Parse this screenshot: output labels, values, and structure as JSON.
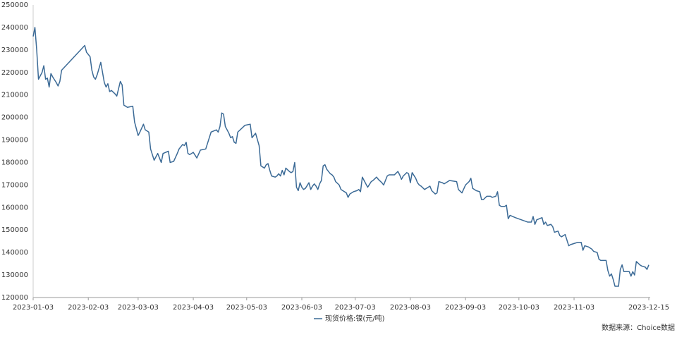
{
  "chart_data": {
    "type": "line",
    "legend_position": "bottom",
    "source": "数据来源：Choice数据",
    "xlim": [
      "2023-01-03",
      "2023-12-15"
    ],
    "xticks": [
      "2023-01-03",
      "2023-02-03",
      "2023-03-03",
      "2023-04-03",
      "2023-05-03",
      "2023-06-03",
      "2023-07-03",
      "2023-08-03",
      "2023-09-03",
      "2023-10-03",
      "2023-11-03",
      "2023-12-15"
    ],
    "ylim": [
      120000,
      250000
    ],
    "yticks": [
      120000,
      130000,
      140000,
      150000,
      160000,
      170000,
      180000,
      190000,
      200000,
      210000,
      220000,
      230000,
      240000,
      250000
    ],
    "grid": false,
    "x": [
      "2023-01-03",
      "2023-01-04",
      "2023-01-05",
      "2023-01-06",
      "2023-01-08",
      "2023-01-09",
      "2023-01-10",
      "2023-01-11",
      "2023-01-12",
      "2023-01-13",
      "2023-01-14",
      "2023-01-16",
      "2023-01-17",
      "2023-01-18",
      "2023-01-19",
      "2023-02-01",
      "2023-02-02",
      "2023-02-04",
      "2023-02-05",
      "2023-02-06",
      "2023-02-07",
      "2023-02-08",
      "2023-02-10",
      "2023-02-11",
      "2023-02-12",
      "2023-02-13",
      "2023-02-14",
      "2023-02-15",
      "2023-02-16",
      "2023-02-18",
      "2023-02-19",
      "2023-02-21",
      "2023-02-22",
      "2023-02-23",
      "2023-02-25",
      "2023-02-28",
      "2023-03-01",
      "2023-03-03",
      "2023-03-04",
      "2023-03-06",
      "2023-03-07",
      "2023-03-09",
      "2023-03-10",
      "2023-03-11",
      "2023-03-12",
      "2023-03-14",
      "2023-03-16",
      "2023-03-17",
      "2023-03-20",
      "2023-03-21",
      "2023-03-23",
      "2023-03-25",
      "2023-03-26",
      "2023-03-28",
      "2023-03-29",
      "2023-03-30",
      "2023-03-31",
      "2023-04-01",
      "2023-04-03",
      "2023-04-05",
      "2023-04-07",
      "2023-04-10",
      "2023-04-11",
      "2023-04-13",
      "2023-04-16",
      "2023-04-17",
      "2023-04-18",
      "2023-04-19",
      "2023-04-20",
      "2023-04-21",
      "2023-04-23",
      "2023-04-24",
      "2023-04-25",
      "2023-04-26",
      "2023-04-27",
      "2023-04-28",
      "2023-05-02",
      "2023-05-05",
      "2023-05-06",
      "2023-05-08",
      "2023-05-10",
      "2023-05-11",
      "2023-05-13",
      "2023-05-14",
      "2023-05-15",
      "2023-05-16",
      "2023-05-17",
      "2023-05-19",
      "2023-05-20",
      "2023-05-21",
      "2023-05-22",
      "2023-05-23",
      "2023-05-24",
      "2023-05-25",
      "2023-05-27",
      "2023-05-28",
      "2023-05-29",
      "2023-05-30",
      "2023-05-31",
      "2023-06-01",
      "2023-06-02",
      "2023-06-03",
      "2023-06-04",
      "2023-06-05",
      "2023-06-07",
      "2023-06-08",
      "2023-06-09",
      "2023-06-10",
      "2023-06-11",
      "2023-06-12",
      "2023-06-13",
      "2023-06-14",
      "2023-06-15",
      "2023-06-16",
      "2023-06-17",
      "2023-06-19",
      "2023-06-20",
      "2023-06-21",
      "2023-06-22",
      "2023-06-24",
      "2023-06-25",
      "2023-06-26",
      "2023-06-28",
      "2023-06-29",
      "2023-06-30",
      "2023-07-02",
      "2023-07-04",
      "2023-07-05",
      "2023-07-06",
      "2023-07-07",
      "2023-07-08",
      "2023-07-09",
      "2023-07-10",
      "2023-07-12",
      "2023-07-13",
      "2023-07-15",
      "2023-07-16",
      "2023-07-18",
      "2023-07-19",
      "2023-07-21",
      "2023-07-22",
      "2023-07-25",
      "2023-07-27",
      "2023-07-28",
      "2023-07-29",
      "2023-07-30",
      "2023-08-01",
      "2023-08-02",
      "2023-08-03",
      "2023-08-04",
      "2023-08-06",
      "2023-08-07",
      "2023-08-08",
      "2023-08-09",
      "2023-08-11",
      "2023-08-13",
      "2023-08-14",
      "2023-08-15",
      "2023-08-17",
      "2023-08-18",
      "2023-08-19",
      "2023-08-21",
      "2023-08-22",
      "2023-08-24",
      "2023-08-25",
      "2023-08-29",
      "2023-08-30",
      "2023-09-01",
      "2023-09-03",
      "2023-09-05",
      "2023-09-06",
      "2023-09-07",
      "2023-09-09",
      "2023-09-11",
      "2023-09-12",
      "2023-09-13",
      "2023-09-15",
      "2023-09-17",
      "2023-09-18",
      "2023-09-20",
      "2023-09-21",
      "2023-09-22",
      "2023-09-23",
      "2023-09-25",
      "2023-09-26",
      "2023-09-27",
      "2023-09-28",
      "2023-10-01",
      "2023-10-08",
      "2023-10-10",
      "2023-10-11",
      "2023-10-12",
      "2023-10-13",
      "2023-10-16",
      "2023-10-17",
      "2023-10-18",
      "2023-10-19",
      "2023-10-21",
      "2023-10-22",
      "2023-10-23",
      "2023-10-25",
      "2023-10-26",
      "2023-10-27",
      "2023-10-29",
      "2023-10-31",
      "2023-11-01",
      "2023-11-03",
      "2023-11-05",
      "2023-11-07",
      "2023-11-08",
      "2023-11-09",
      "2023-11-11",
      "2023-11-13",
      "2023-11-14",
      "2023-11-16",
      "2023-11-17",
      "2023-11-18",
      "2023-11-21",
      "2023-11-22",
      "2023-11-23",
      "2023-11-24",
      "2023-11-25",
      "2023-11-26",
      "2023-11-28",
      "2023-11-29",
      "2023-11-30",
      "2023-12-01",
      "2023-12-03",
      "2023-12-04",
      "2023-12-05",
      "2023-12-06",
      "2023-12-07",
      "2023-12-08",
      "2023-12-10",
      "2023-12-11",
      "2023-12-13",
      "2023-12-14",
      "2023-12-15"
    ],
    "series": [
      {
        "name": "现货价格:镍(元/吨)",
        "color": "#3b6a96",
        "values": [
          236000,
          240000,
          230000,
          217000,
          220000,
          223000,
          217000,
          217500,
          213500,
          219500,
          218000,
          215500,
          214000,
          216000,
          221000,
          232000,
          229000,
          227000,
          221000,
          218000,
          217000,
          219000,
          224500,
          220000,
          215500,
          213500,
          215000,
          211500,
          212000,
          210500,
          209500,
          216000,
          214500,
          205500,
          204500,
          205000,
          198000,
          192000,
          193500,
          197000,
          194500,
          193500,
          186000,
          183500,
          181000,
          184000,
          180000,
          184000,
          185000,
          180000,
          180500,
          184000,
          186000,
          188000,
          187500,
          189000,
          184000,
          183500,
          184500,
          182000,
          185500,
          186000,
          188500,
          193500,
          194500,
          193500,
          196000,
          202000,
          201500,
          196000,
          193000,
          191000,
          191500,
          189000,
          188500,
          193500,
          196500,
          197000,
          191000,
          193000,
          187500,
          178500,
          177500,
          179000,
          179500,
          176500,
          174000,
          173500,
          174000,
          175000,
          174000,
          176500,
          174500,
          177500,
          176000,
          175500,
          176000,
          180000,
          169000,
          167500,
          171000,
          169000,
          168000,
          168500,
          171000,
          168000,
          169500,
          170500,
          169500,
          168000,
          170500,
          172000,
          178500,
          179000,
          177000,
          175000,
          174500,
          173500,
          171500,
          170000,
          168000,
          167500,
          166500,
          164500,
          166000,
          167000,
          167500,
          168000,
          167000,
          173500,
          172000,
          170500,
          169000,
          171500,
          172000,
          173500,
          172500,
          171000,
          170000,
          174000,
          174500,
          174500,
          176000,
          174500,
          172500,
          174000,
          175500,
          175000,
          171000,
          175500,
          173000,
          171000,
          170000,
          169500,
          168000,
          169000,
          169500,
          167500,
          166000,
          166500,
          171500,
          171000,
          170500,
          171500,
          172000,
          171500,
          168000,
          166500,
          170000,
          171500,
          173000,
          168500,
          167500,
          167000,
          163500,
          163500,
          165000,
          165000,
          164500,
          165000,
          167000,
          161000,
          160500,
          160500,
          161000,
          155000,
          156500,
          155500,
          153500,
          153500,
          156000,
          152500,
          154500,
          155500,
          152500,
          153500,
          152000,
          152500,
          151500,
          149000,
          149500,
          147500,
          147000,
          148000,
          143000,
          143500,
          144000,
          144500,
          144500,
          141000,
          143000,
          142500,
          141500,
          140500,
          140000,
          137000,
          136500,
          136500,
          132000,
          129500,
          130500,
          128000,
          125000,
          125000,
          132500,
          134500,
          131500,
          131500,
          131500,
          129500,
          131500,
          130000,
          136000,
          134500,
          134000,
          133500,
          132500,
          134500
        ]
      }
    ]
  }
}
